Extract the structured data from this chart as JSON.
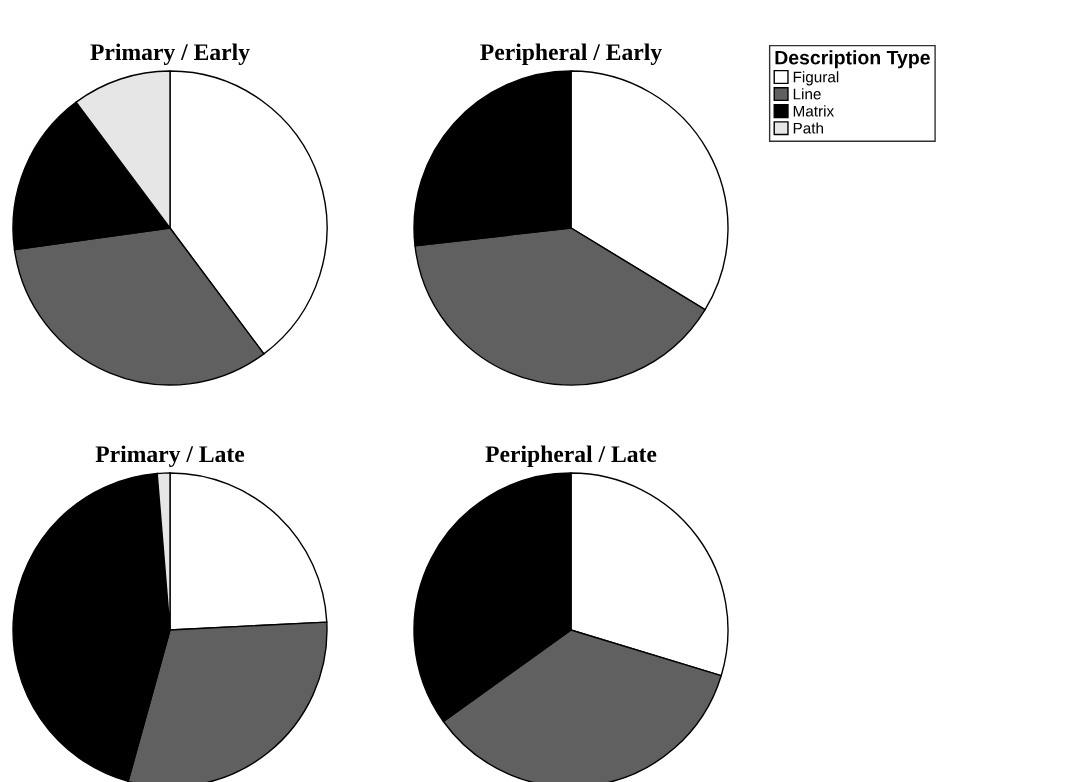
{
  "chart_data": [
    {
      "type": "pie",
      "title": "Primary / Early",
      "categories": [
        "Figural",
        "Line",
        "Matrix",
        "Path"
      ],
      "values": [
        39.8,
        33,
        17,
        10.2
      ],
      "colors": [
        "#ffffff",
        "#606060",
        "#000000",
        "#e6e6e6"
      ],
      "legend": "right",
      "legend_title": "Description Type"
    },
    {
      "type": "pie",
      "title": "Peripheral / Early",
      "categories": [
        null,
        null,
        null
      ],
      "values": [
        33.7,
        39.5,
        26.8
      ],
      "colors": [
        "#ffffff",
        "#606060",
        "#000000"
      ]
    },
    {
      "type": "pie",
      "title": "Primary / Late",
      "categories": [
        null,
        null,
        null,
        null
      ],
      "values": [
        24.2,
        30.1,
        44.4,
        1.3
      ],
      "colors": [
        "#ffffff",
        "#606060",
        "#000000",
        "#e6e6e6"
      ]
    },
    {
      "type": "pie",
      "title": "Peripheral / Late",
      "categories": [
        null,
        null,
        null
      ],
      "values": [
        29.7,
        35.4,
        34.9
      ],
      "colors": [
        "#ffffff",
        "#606060",
        "#000000"
      ]
    }
  ]
}
